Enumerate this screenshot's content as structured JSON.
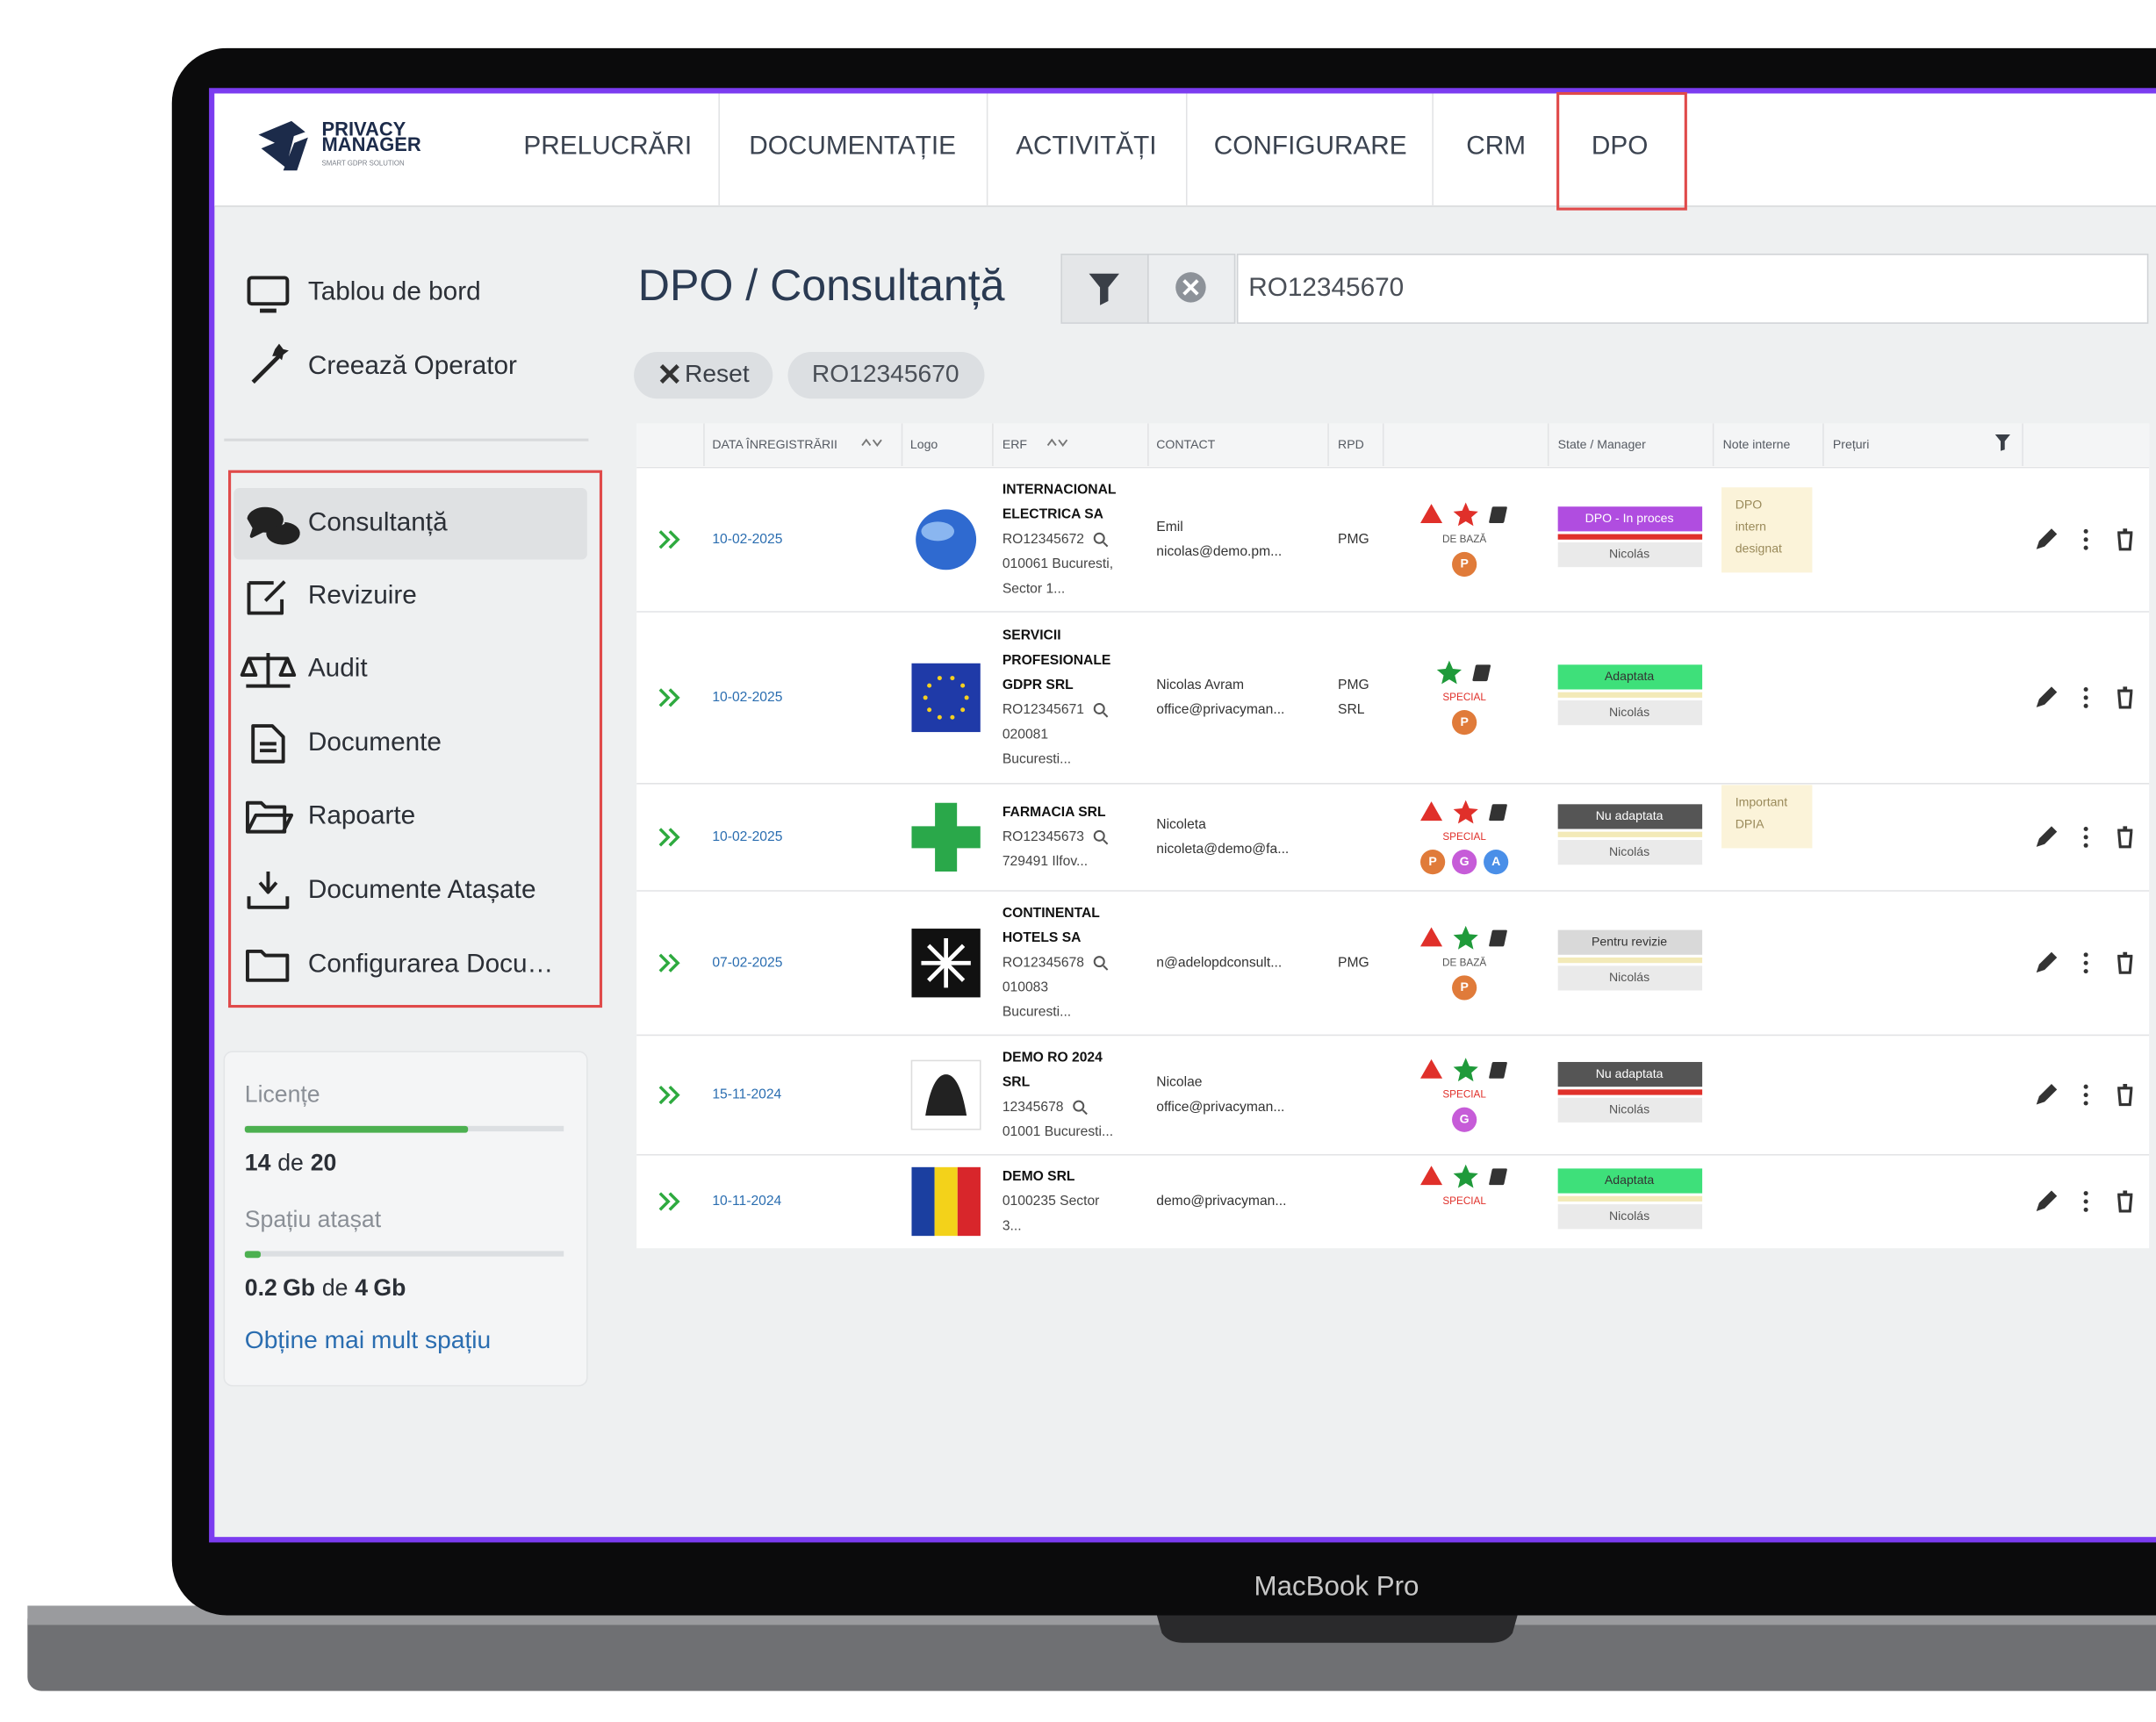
{
  "app": {
    "logo_title": [
      "PRIVACY",
      "MANAGER"
    ],
    "logo_subtitle": "SMART GDPR SOLUTION"
  },
  "nav": [
    "PRELUCRĂRI",
    "DOCUMENTAȚIE",
    "ACTIVITĂȚI",
    "CONFIGURARE",
    "CRM",
    "DPO"
  ],
  "sidebar": {
    "top": [
      "Tablou de bord",
      "Creează Operator"
    ],
    "menu": [
      "Consultanță",
      "Revizuire",
      "Audit",
      "Documente",
      "Rapoarte",
      "Documente Atașate",
      "Configurarea Docu…"
    ]
  },
  "usage": {
    "licenses_label": "Licențe",
    "licenses_used": 14,
    "of": "de",
    "licenses_total": 20,
    "space_label": "Spațiu atașat",
    "space_used": 0.2,
    "unit": "Gb",
    "space_total": 4,
    "more_space": "Obține mai mult spațiu"
  },
  "page": {
    "title": "DPO / Consultanță",
    "search": "RO12345670",
    "reset": "Reset",
    "chip": "RO12345670"
  },
  "table": {
    "headers": [
      "DATA ÎNREGISTRĂRII",
      "Logo",
      "ERF",
      "CONTACT",
      "RPD",
      "State / Manager",
      "Note interne",
      "Prețuri"
    ],
    "rows": [
      {
        "date": "10-02-2025",
        "name": [
          "INTERNACIONAL",
          "ELECTRICA SA"
        ],
        "code": "RO12345672",
        "address": [
          "010061 Bucuresti,",
          "Sector 1..."
        ],
        "contact": [
          "Emil",
          "nicolas@demo.pm..."
        ],
        "rpd": [
          "PMG"
        ],
        "alert": true,
        "star_color": "#e0302a",
        "level": "DE BAZĂ",
        "letters": [
          "P"
        ],
        "state": "DPO - In proces",
        "state_color": "#b04de0",
        "manager": "Nicolás",
        "note": [
          "DPO",
          "intern",
          "designat"
        ]
      },
      {
        "date": "10-02-2025",
        "name": [
          "SERVICII",
          "PROFESIONALE",
          "GDPR SRL"
        ],
        "code": "RO12345671",
        "address": [
          "020081",
          "Bucuresti..."
        ],
        "contact": [
          "Nicolas Avram",
          "office@privacyman..."
        ],
        "rpd": [
          "PMG",
          "SRL"
        ],
        "alert": false,
        "star_color": "#1f9a3a",
        "level": "SPECIAL",
        "letters": [
          "P"
        ],
        "state": "Adaptata",
        "state_color": "#3ee07a",
        "manager": "Nicolás"
      },
      {
        "date": "10-02-2025",
        "name": [
          "FARMACIA SRL"
        ],
        "code": "RO12345673",
        "address": [
          "729491 Ilfov..."
        ],
        "contact": [
          "Nicoleta",
          "nicoleta@demo@fa..."
        ],
        "rpd": [],
        "alert": true,
        "star_color": "#e0302a",
        "level": "SPECIAL",
        "letters": [
          "P",
          "G",
          "A"
        ],
        "state": "Nu adaptata",
        "state_color": "#555555",
        "manager": "Nicolás",
        "note": [
          "Important",
          "DPIA"
        ]
      },
      {
        "date": "07-02-2025",
        "name": [
          "CONTINENTAL",
          "HOTELS SA"
        ],
        "code": "RO12345678",
        "address": [
          "010083",
          "Bucuresti..."
        ],
        "contact": [
          "n@adelopdconsult..."
        ],
        "rpd": [
          "PMG"
        ],
        "alert": true,
        "star_color": "#1f9a3a",
        "level": "DE BAZĂ",
        "letters": [
          "P"
        ],
        "state": "Pentru revizie",
        "state_color": "#d9d9d9",
        "manager": "Nicolás"
      },
      {
        "date": "15-11-2024",
        "name": [
          "DEMO RO 2024",
          "SRL"
        ],
        "code": "12345678",
        "address": [
          "01001 Bucuresti..."
        ],
        "contact": [
          "Nicolae",
          "office@privacyman..."
        ],
        "rpd": [],
        "alert": true,
        "star_color": "#1f9a3a",
        "level": "SPECIAL",
        "letters": [
          "G"
        ],
        "state": "Nu adaptata",
        "state_color": "#555555",
        "manager": "Nicolás"
      },
      {
        "date": "10-11-2024",
        "name": [
          "DEMO SRL"
        ],
        "address": [
          "0100235 Sector",
          "3..."
        ],
        "contact": [
          "demo@privacyman..."
        ],
        "rpd": [],
        "alert": true,
        "star_color": "#1f9a3a",
        "level": "SPECIAL",
        "letters": [],
        "state": "Adaptata",
        "state_color": "#3ee07a",
        "manager": "Nicolás"
      }
    ]
  },
  "device_label": "MacBook Pro"
}
